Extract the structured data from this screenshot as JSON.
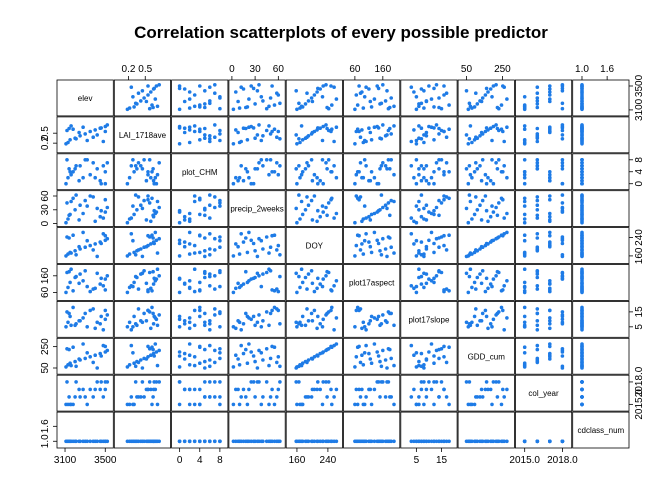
{
  "chart_data": {
    "type": "scatter",
    "title": "Correlation scatterplots of every possible predictor",
    "point_color": "#1e7be6",
    "variables": [
      {
        "name": "elev",
        "range": [
          3050,
          3550
        ],
        "ticks": [
          "3100",
          "3500"
        ],
        "tick_values": [
          3100,
          3500
        ],
        "tick_side": "bottom"
      },
      {
        "name": "LAI_1718ave",
        "range": [
          0.0,
          0.9
        ],
        "ticks": [
          "0.2",
          "0.5"
        ],
        "tick_values": [
          0.2,
          0.5
        ],
        "tick_side": "top-left"
      },
      {
        "name": "plot_CHM",
        "range": [
          -1,
          9
        ],
        "ticks": [
          "0",
          "4",
          "8"
        ],
        "tick_values": [
          0,
          4,
          8
        ],
        "tick_side": "bottom-right"
      },
      {
        "name": "precip_2weeks",
        "range": [
          0,
          65
        ],
        "ticks": [
          "0",
          "30",
          "60"
        ],
        "tick_values": [
          0,
          30,
          60
        ],
        "tick_side": "top-left"
      },
      {
        "name": "DOY",
        "range": [
          140,
          270
        ],
        "ticks": [
          "160",
          "240"
        ],
        "tick_values": [
          160,
          240
        ],
        "tick_side": "bottom-right"
      },
      {
        "name": "plot17aspect",
        "range": [
          30,
          210
        ],
        "ticks": [
          "60",
          "160"
        ],
        "tick_values": [
          60,
          160
        ],
        "tick_side": "top-left"
      },
      {
        "name": "plot17slope",
        "range": [
          0,
          20
        ],
        "ticks": [
          "5",
          "15"
        ],
        "tick_values": [
          5,
          15
        ],
        "tick_side": "bottom-right"
      },
      {
        "name": "GDD_cum",
        "range": [
          20,
          300
        ],
        "ticks": [
          "50",
          "250"
        ],
        "tick_values": [
          50,
          250
        ],
        "tick_side": "top-left"
      },
      {
        "name": "col_year",
        "range": [
          2014.5,
          2018.5
        ],
        "ticks": [
          "2015.0",
          "2018.0"
        ],
        "tick_values": [
          2015,
          2018
        ],
        "tick_side": "bottom-right"
      },
      {
        "name": "cdclass_num",
        "range": [
          0.85,
          2.05
        ],
        "ticks": [
          "1.0",
          "1.6"
        ],
        "tick_values": [
          1.0,
          1.6
        ],
        "tick_side": "top-left"
      }
    ],
    "observations": [
      [
        3110,
        0.18,
        0,
        2,
        160,
        60,
        5,
        60,
        2015,
        1
      ],
      [
        3130,
        0.22,
        2,
        10,
        168,
        90,
        8,
        80,
        2015,
        1
      ],
      [
        3150,
        0.3,
        4,
        20,
        175,
        120,
        12,
        95,
        2015,
        1
      ],
      [
        3200,
        0.35,
        5,
        30,
        182,
        150,
        6,
        110,
        2016,
        1
      ],
      [
        3250,
        0.42,
        6,
        40,
        190,
        170,
        9,
        125,
        2016,
        1
      ],
      [
        3300,
        0.48,
        8,
        50,
        198,
        190,
        14,
        140,
        2016,
        1
      ],
      [
        3350,
        0.55,
        3,
        60,
        205,
        65,
        16,
        155,
        2017,
        1
      ],
      [
        3400,
        0.6,
        2,
        5,
        212,
        85,
        4,
        170,
        2017,
        1
      ],
      [
        3450,
        0.65,
        1,
        15,
        220,
        110,
        7,
        185,
        2017,
        1
      ],
      [
        3500,
        0.7,
        0,
        25,
        228,
        140,
        10,
        200,
        2018,
        1
      ],
      [
        3520,
        0.75,
        7,
        35,
        235,
        160,
        13,
        215,
        2018,
        1
      ],
      [
        3120,
        0.58,
        8,
        45,
        242,
        180,
        15,
        230,
        2018,
        1
      ],
      [
        3180,
        0.62,
        4,
        55,
        250,
        70,
        18,
        245,
        2015,
        1
      ],
      [
        3480,
        0.25,
        6,
        12,
        256,
        100,
        3,
        260,
        2016,
        1
      ],
      [
        3280,
        0.68,
        2,
        22,
        262,
        130,
        11,
        275,
        2017,
        1
      ],
      [
        3420,
        0.45,
        5,
        33,
        158,
        175,
        8,
        50,
        2018,
        1
      ],
      [
        3160,
        0.72,
        3,
        48,
        172,
        200,
        6,
        72,
        2015,
        1
      ],
      [
        3380,
        0.38,
        7,
        58,
        186,
        80,
        17,
        102,
        2016,
        1
      ],
      [
        3240,
        0.52,
        1,
        8,
        200,
        115,
        9,
        134,
        2017,
        1
      ],
      [
        3460,
        0.66,
        0,
        28,
        214,
        145,
        12,
        162,
        2018,
        1
      ],
      [
        3320,
        0.28,
        8,
        38,
        226,
        95,
        5,
        192,
        2015,
        1
      ],
      [
        3140,
        0.64,
        5,
        18,
        238,
        185,
        14,
        222,
        2016,
        1
      ],
      [
        3500,
        0.55,
        4,
        52,
        248,
        75,
        16,
        252,
        2017,
        1
      ],
      [
        3210,
        0.33,
        6,
        62,
        165,
        155,
        7,
        66,
        2018,
        1
      ]
    ]
  }
}
